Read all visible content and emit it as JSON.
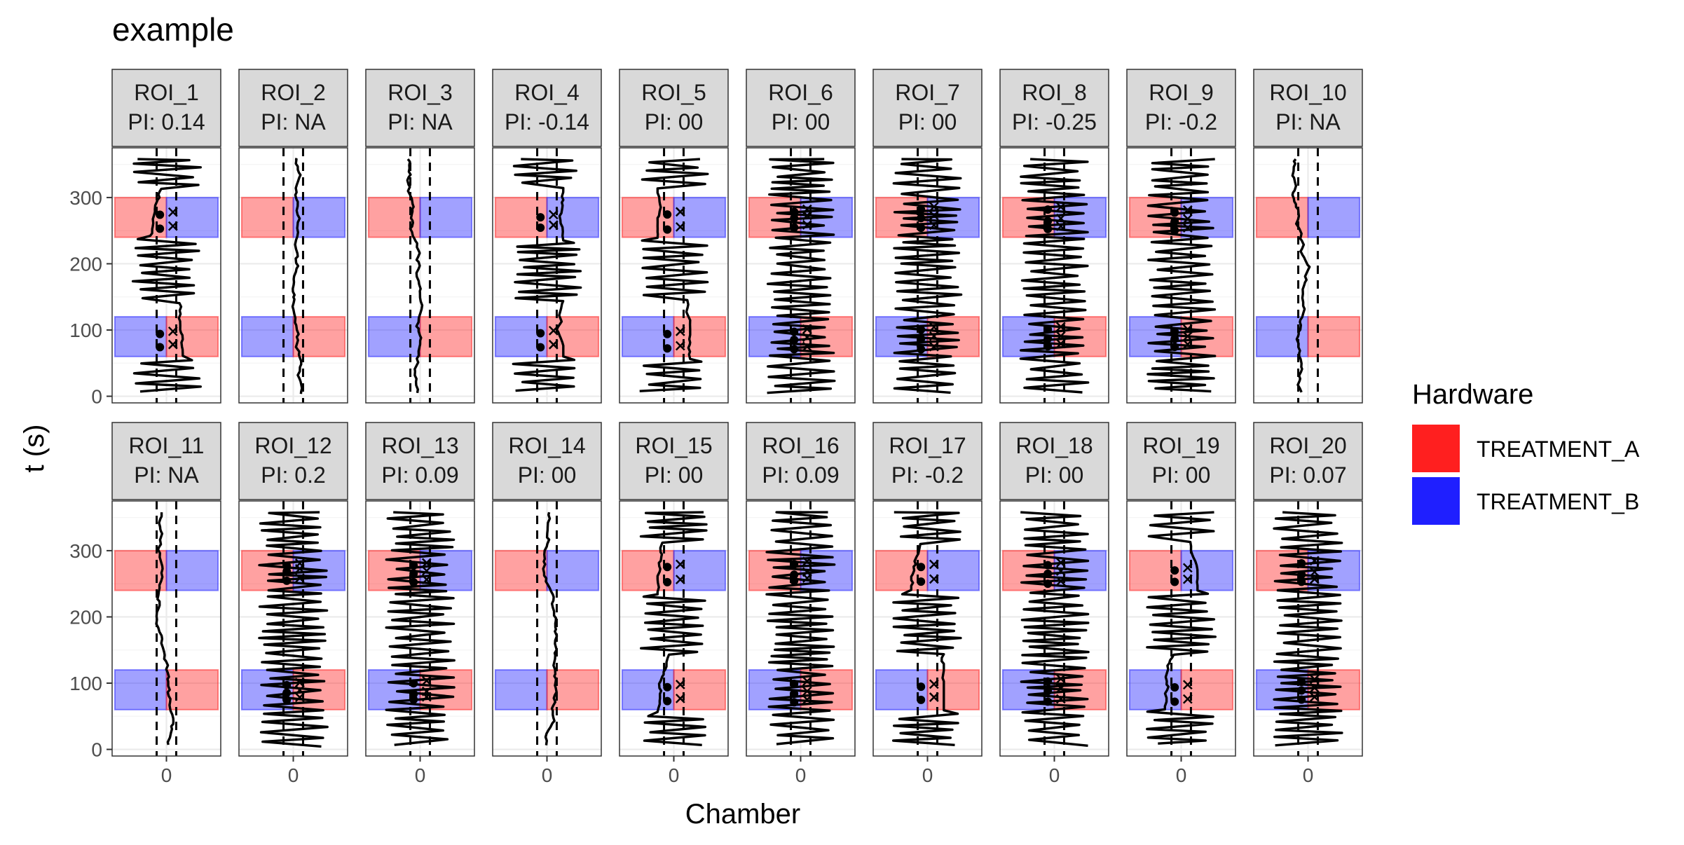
{
  "chart_data": {
    "type": "faceted-line",
    "title": "example",
    "xlabel": "Chamber",
    "ylabel": "t (s)",
    "x_ticks": [
      "0"
    ],
    "y_ticks": [
      0,
      100,
      200,
      300
    ],
    "ylim": [
      -10,
      375
    ],
    "legend": {
      "title": "Hardware",
      "placement": "right",
      "entries": [
        {
          "label": "TREATMENT_A",
          "color": "#ff1f1f"
        },
        {
          "label": "TREATMENT_B",
          "color": "#1f1fff"
        }
      ]
    },
    "colors": {
      "treatment_a": "#ff1f1f",
      "treatment_b": "#1f1fff",
      "strip_bg": "#d9d9d9",
      "grid": "#ebebeb",
      "trace": "#000000"
    },
    "stimulus_windows": [
      {
        "t_start": 60,
        "t_end": 120,
        "left": "TREATMENT_B",
        "right": "TREATMENT_A"
      },
      {
        "t_start": 240,
        "t_end": 300,
        "left": "TREATMENT_A",
        "right": "TREATMENT_B"
      }
    ],
    "panels": [
      {
        "roi": "ROI_1",
        "pi": "PI: 0.14",
        "activity": "mixed"
      },
      {
        "roi": "ROI_2",
        "pi": "PI: NA",
        "activity": "still"
      },
      {
        "roi": "ROI_3",
        "pi": "PI: NA",
        "activity": "still"
      },
      {
        "roi": "ROI_4",
        "pi": "PI: -0.14",
        "activity": "mixed"
      },
      {
        "roi": "ROI_5",
        "pi": "PI: 00",
        "activity": "mixed"
      },
      {
        "roi": "ROI_6",
        "pi": "PI: 00",
        "activity": "active"
      },
      {
        "roi": "ROI_7",
        "pi": "PI: 00",
        "activity": "active"
      },
      {
        "roi": "ROI_8",
        "pi": "PI: -0.25",
        "activity": "active"
      },
      {
        "roi": "ROI_9",
        "pi": "PI: -0.2",
        "activity": "active"
      },
      {
        "roi": "ROI_10",
        "pi": "PI: NA",
        "activity": "still"
      },
      {
        "roi": "ROI_11",
        "pi": "PI: NA",
        "activity": "still"
      },
      {
        "roi": "ROI_12",
        "pi": "PI: 0.2",
        "activity": "active"
      },
      {
        "roi": "ROI_13",
        "pi": "PI: 0.09",
        "activity": "active"
      },
      {
        "roi": "ROI_14",
        "pi": "PI: 00",
        "activity": "still"
      },
      {
        "roi": "ROI_15",
        "pi": "PI: 00",
        "activity": "mixed"
      },
      {
        "roi": "ROI_16",
        "pi": "PI: 0.09",
        "activity": "active"
      },
      {
        "roi": "ROI_17",
        "pi": "PI: -0.2",
        "activity": "mixed"
      },
      {
        "roi": "ROI_18",
        "pi": "PI: 00",
        "activity": "active"
      },
      {
        "roi": "ROI_19",
        "pi": "PI: 00",
        "activity": "mixed"
      },
      {
        "roi": "ROI_20",
        "pi": "PI: 0.07",
        "activity": "active"
      }
    ]
  }
}
